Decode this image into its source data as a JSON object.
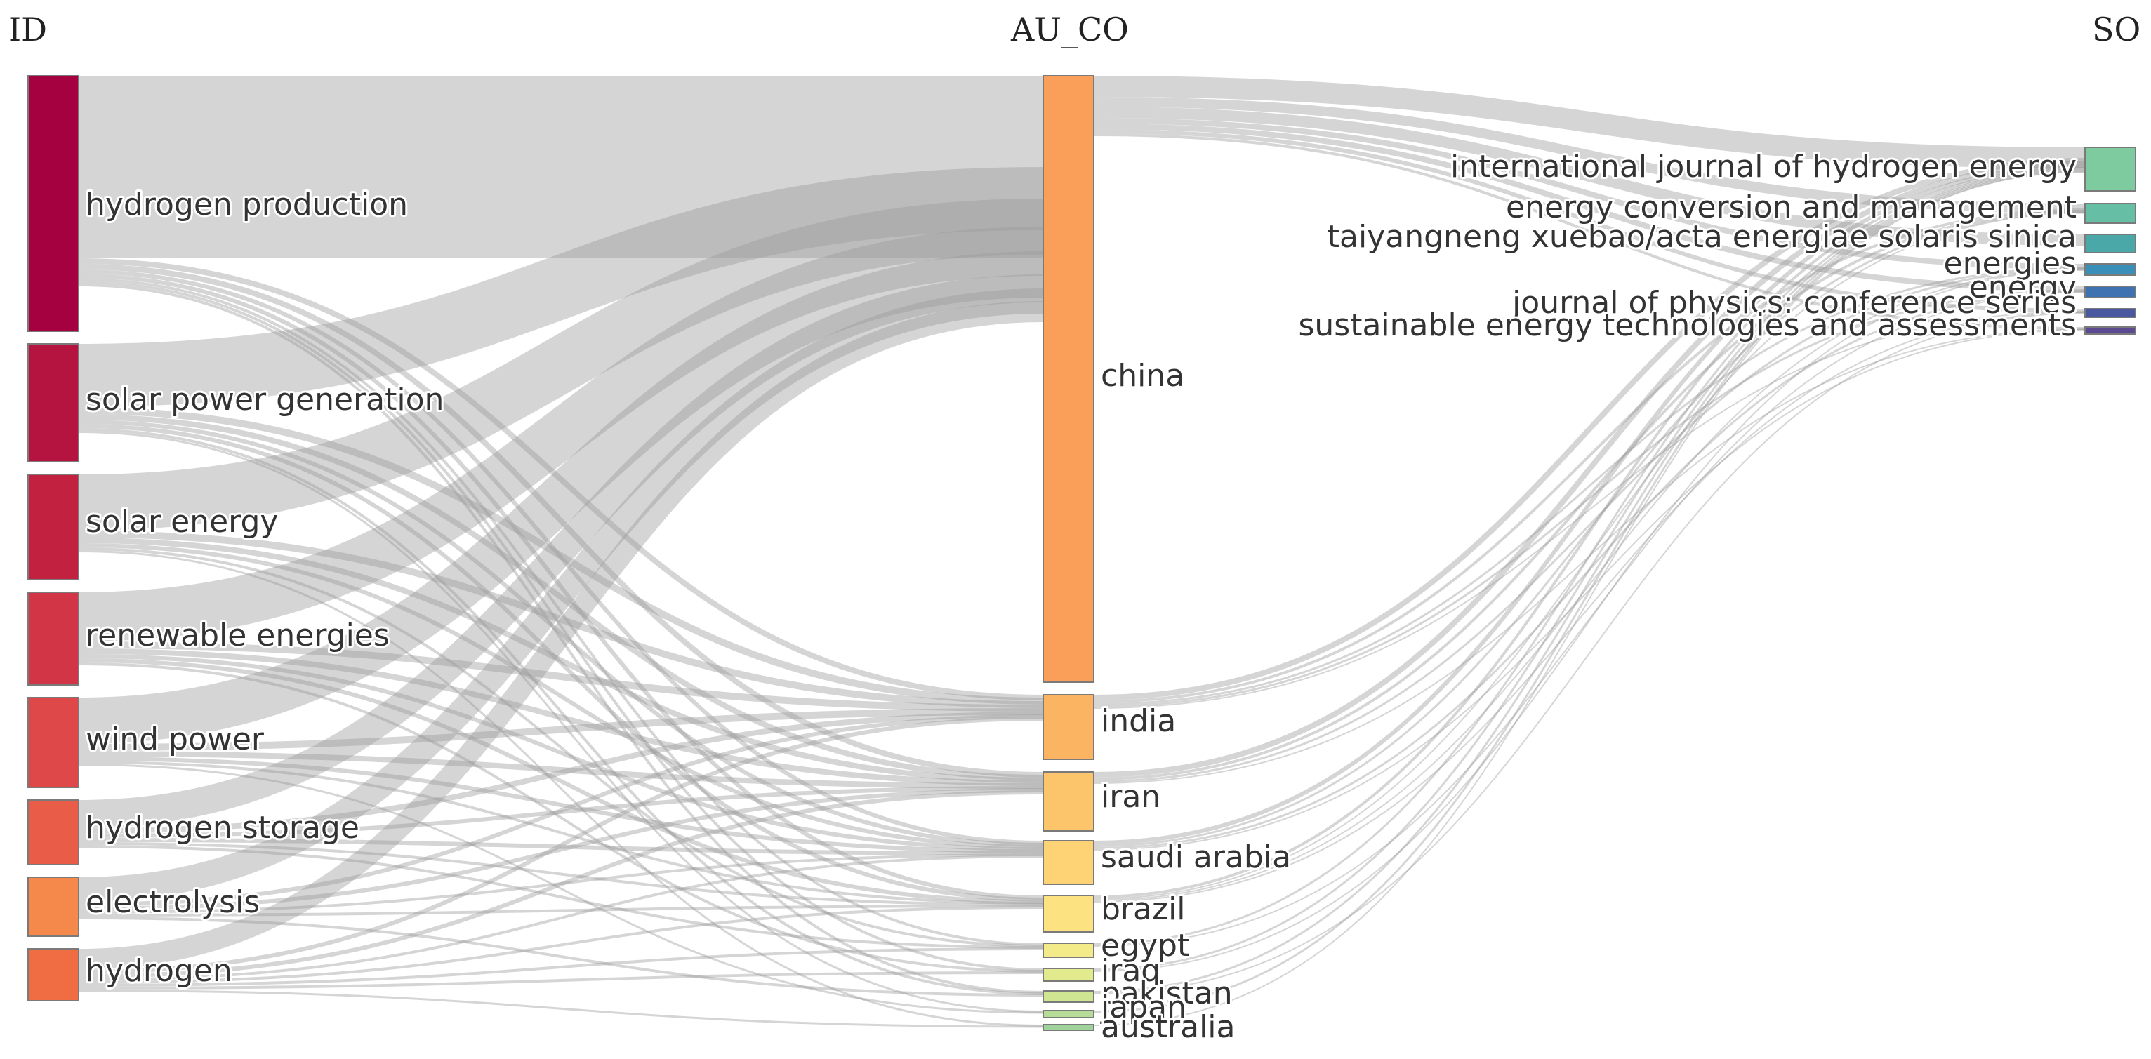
{
  "columns": {
    "left": "ID",
    "middle": "AU_CO",
    "right": "SO"
  },
  "nodes": {
    "id": [
      {
        "label": "hydrogen production",
        "color": "#a50040"
      },
      {
        "label": "solar power generation",
        "color": "#b4143f"
      },
      {
        "label": "solar energy",
        "color": "#c2223f"
      },
      {
        "label": "renewable energies",
        "color": "#d23545"
      },
      {
        "label": "wind power",
        "color": "#de4848"
      },
      {
        "label": "hydrogen storage",
        "color": "#e85c48"
      },
      {
        "label": "electrolysis",
        "color": "#f5894c"
      },
      {
        "label": "hydrogen",
        "color": "#f06d43"
      }
    ],
    "au_co": [
      {
        "label": "china",
        "color": "#f99f5a"
      },
      {
        "label": "india",
        "color": "#fbb462"
      },
      {
        "label": "iran",
        "color": "#fcc56c"
      },
      {
        "label": "saudi arabia",
        "color": "#fdd376"
      },
      {
        "label": "brazil",
        "color": "#fde282"
      },
      {
        "label": "egypt",
        "color": "#f3ea8a"
      },
      {
        "label": "iraq",
        "color": "#e2ea8e"
      },
      {
        "label": "pakistan",
        "color": "#cfe592"
      },
      {
        "label": "japan",
        "color": "#b6dc97"
      },
      {
        "label": "australia",
        "color": "#9fd39b"
      }
    ],
    "so": [
      {
        "label": "international journal of hydrogen energy",
        "color": "#7fcba0"
      },
      {
        "label": "energy conversion and management",
        "color": "#66bfa4"
      },
      {
        "label": "taiyangneng xuebao/acta energiae solaris sinica",
        "color": "#4aa8a8"
      },
      {
        "label": "energies",
        "color": "#3a8fb8"
      },
      {
        "label": "energy",
        "color": "#3f72b0"
      },
      {
        "label": "journal of physics: conference series",
        "color": "#4a58a0"
      },
      {
        "label": "sustainable energy technologies and assessments",
        "color": "#5b4a90"
      }
    ]
  }
}
